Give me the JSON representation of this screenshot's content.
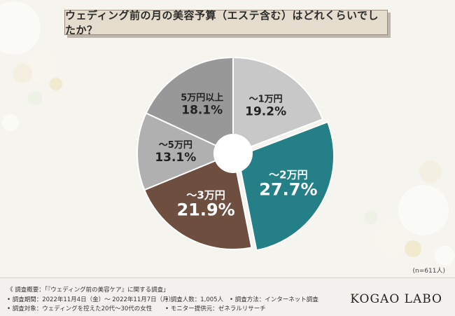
{
  "title": "ウェディング前の月の美容予算（エステ含む）はどれくらいでしたか？",
  "sample_size": "(n=611人)",
  "chart_data": {
    "type": "pie",
    "donut": true,
    "categories": [
      "〜1万円",
      "〜2万円",
      "〜3万円",
      "〜5万円",
      "5万円以上"
    ],
    "values": [
      19.2,
      27.7,
      21.9,
      13.1,
      18.1
    ],
    "value_labels": [
      "19.2%",
      "27.7%",
      "21.9%",
      "13.1%",
      "18.1%"
    ],
    "colors": [
      "#c8c8c8",
      "#247f86",
      "#6e4f3f",
      "#b0b0b0",
      "#989898"
    ],
    "label_colors": [
      "#222222",
      "#ffffff",
      "#ffffff",
      "#222222",
      "#222222"
    ],
    "start_angle_deg": 0,
    "direction": "clockwise"
  },
  "footer": {
    "survey_title": "《 調査概要：「『ウェディング前の美容ケア』に関する調査」",
    "period": "• 調査期間：2022年11月4日（金）〜 2022年11月7日（月）",
    "respondents": "• 調査人数：1,005人",
    "method": "• 調査方法：インターネット調査",
    "target": "• 調査対象：ウェディングを控えた20代〜30代の女性",
    "provider": "• モニター提供元：ゼネラルリサーチ",
    "brand": "KOGAO LABO"
  }
}
